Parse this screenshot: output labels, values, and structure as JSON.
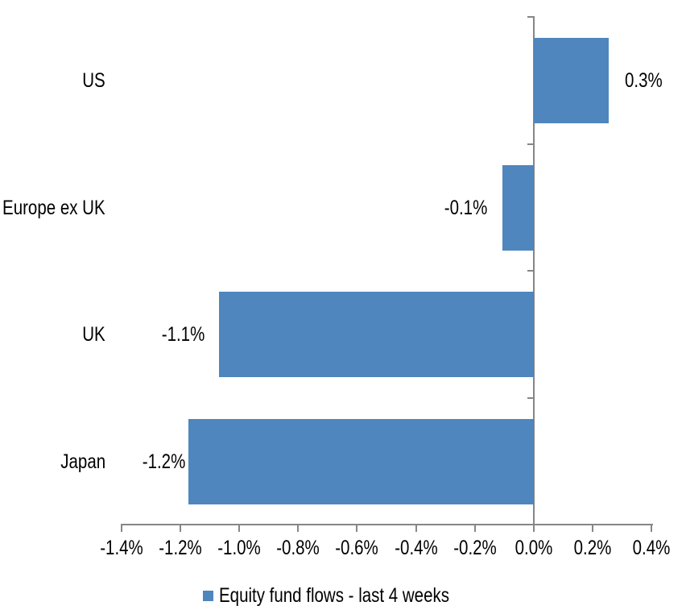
{
  "chart_data": {
    "type": "bar",
    "orientation": "horizontal",
    "categories": [
      "US",
      "Europe ex UK",
      "UK",
      "Japan"
    ],
    "values": [
      0.3,
      -0.1,
      -1.1,
      -1.2
    ],
    "value_labels": [
      "0.3%",
      "-0.1%",
      "-1.1%",
      "-1.2%"
    ],
    "bar_values_est": [
      0.255,
      -0.107,
      -1.067,
      -1.172
    ],
    "x_axis": {
      "min_pct": -1.4,
      "max_pct": 0.4,
      "tick_step_pct": 0.2,
      "tick_labels": [
        "-1.4%",
        "-1.2%",
        "-1.0%",
        "-0.8%",
        "-0.6%",
        "-0.4%",
        "-0.2%",
        "0.0%",
        "0.2%",
        "0.4%"
      ]
    },
    "legend": [
      {
        "label": "Equity fund flows - last 4 weeks",
        "color": "#4E86BD"
      }
    ],
    "legend_position": "bottom",
    "grid": false,
    "colors": {
      "bar": "#4E86BD",
      "axis": "#868686",
      "text": "#000000",
      "background": "#FFFFFF"
    }
  }
}
